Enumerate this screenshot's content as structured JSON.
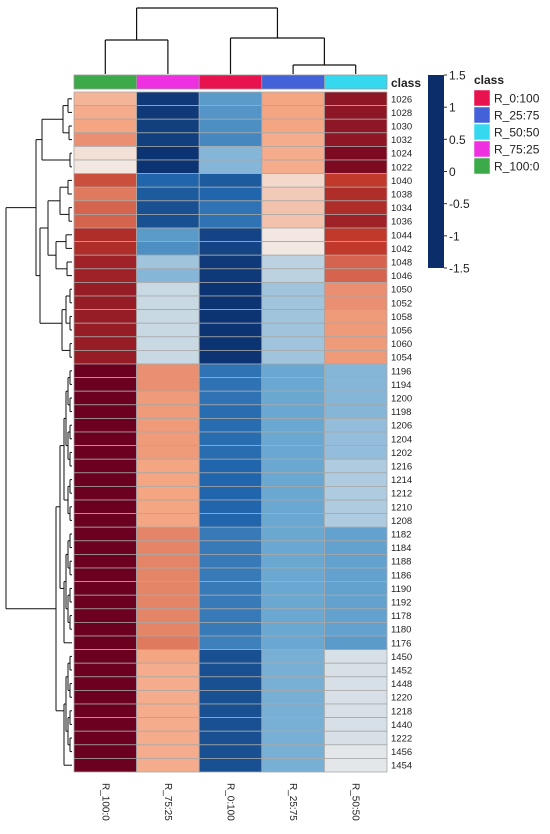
{
  "chart_data": {
    "type": "heatmap",
    "columns": [
      "R_100:0",
      "R_75:25",
      "R_0:100",
      "R_25:75",
      "R_50:50"
    ],
    "rows": [
      "1026",
      "1028",
      "1030",
      "1032",
      "1024",
      "1022",
      "1040",
      "1038",
      "1034",
      "1036",
      "1044",
      "1042",
      "1048",
      "1046",
      "1050",
      "1052",
      "1058",
      "1056",
      "1060",
      "1054",
      "1196",
      "1194",
      "1200",
      "1198",
      "1206",
      "1204",
      "1202",
      "1216",
      "1214",
      "1212",
      "1210",
      "1208",
      "1182",
      "1184",
      "1188",
      "1186",
      "1190",
      "1192",
      "1178",
      "1180",
      "1176",
      "1450",
      "1452",
      "1448",
      "1220",
      "1218",
      "1440",
      "1222",
      "1456",
      "1454"
    ],
    "values": [
      [
        0.4,
        -1.4,
        -0.6,
        0.5,
        1.3
      ],
      [
        0.45,
        -1.4,
        -0.65,
        0.5,
        1.3
      ],
      [
        0.5,
        -1.35,
        -0.7,
        0.5,
        1.3
      ],
      [
        0.6,
        -1.35,
        -0.75,
        0.45,
        1.3
      ],
      [
        0.1,
        -1.45,
        -0.4,
        0.45,
        1.4
      ],
      [
        0.05,
        -1.45,
        -0.4,
        0.45,
        1.4
      ],
      [
        0.9,
        -1.0,
        -1.1,
        0.15,
        1.0
      ],
      [
        0.7,
        -1.1,
        -1.0,
        0.25,
        1.1
      ],
      [
        0.8,
        -1.2,
        -0.9,
        0.3,
        1.1
      ],
      [
        0.8,
        -1.2,
        -0.9,
        0.3,
        1.2
      ],
      [
        1.1,
        -0.6,
        -1.3,
        0.05,
        1.0
      ],
      [
        1.1,
        -0.7,
        -1.3,
        0.05,
        1.0
      ],
      [
        1.2,
        -0.3,
        -1.4,
        -0.2,
        0.8
      ],
      [
        1.2,
        -0.4,
        -1.4,
        -0.2,
        0.8
      ],
      [
        1.25,
        -0.15,
        -1.45,
        -0.3,
        0.6
      ],
      [
        1.25,
        -0.15,
        -1.45,
        -0.3,
        0.6
      ],
      [
        1.25,
        -0.15,
        -1.45,
        -0.3,
        0.55
      ],
      [
        1.25,
        -0.15,
        -1.45,
        -0.3,
        0.55
      ],
      [
        1.25,
        -0.15,
        -1.45,
        -0.3,
        0.55
      ],
      [
        1.25,
        -0.15,
        -1.45,
        -0.3,
        0.55
      ],
      [
        1.5,
        0.6,
        -0.9,
        -0.5,
        -0.4
      ],
      [
        1.5,
        0.6,
        -0.9,
        -0.5,
        -0.4
      ],
      [
        1.5,
        0.55,
        -0.9,
        -0.5,
        -0.4
      ],
      [
        1.5,
        0.55,
        -0.95,
        -0.5,
        -0.4
      ],
      [
        1.5,
        0.55,
        -0.95,
        -0.5,
        -0.35
      ],
      [
        1.5,
        0.55,
        -0.95,
        -0.5,
        -0.35
      ],
      [
        1.5,
        0.55,
        -0.95,
        -0.5,
        -0.35
      ],
      [
        1.5,
        0.5,
        -1.0,
        -0.5,
        -0.25
      ],
      [
        1.5,
        0.5,
        -1.0,
        -0.5,
        -0.25
      ],
      [
        1.5,
        0.5,
        -1.0,
        -0.5,
        -0.25
      ],
      [
        1.5,
        0.5,
        -1.0,
        -0.5,
        -0.25
      ],
      [
        1.5,
        0.5,
        -1.0,
        -0.5,
        -0.25
      ],
      [
        1.5,
        0.65,
        -0.85,
        -0.5,
        -0.55
      ],
      [
        1.5,
        0.65,
        -0.85,
        -0.5,
        -0.55
      ],
      [
        1.5,
        0.65,
        -0.85,
        -0.5,
        -0.55
      ],
      [
        1.5,
        0.65,
        -0.85,
        -0.5,
        -0.55
      ],
      [
        1.5,
        0.65,
        -0.85,
        -0.5,
        -0.55
      ],
      [
        1.5,
        0.65,
        -0.85,
        -0.5,
        -0.55
      ],
      [
        1.5,
        0.65,
        -0.85,
        -0.5,
        -0.55
      ],
      [
        1.5,
        0.65,
        -0.85,
        -0.5,
        -0.55
      ],
      [
        1.5,
        0.7,
        -0.8,
        -0.5,
        -0.6
      ],
      [
        1.5,
        0.5,
        -1.2,
        -0.45,
        -0.1
      ],
      [
        1.5,
        0.45,
        -1.2,
        -0.45,
        -0.1
      ],
      [
        1.5,
        0.45,
        -1.2,
        -0.45,
        -0.1
      ],
      [
        1.5,
        0.45,
        -1.2,
        -0.45,
        -0.1
      ],
      [
        1.5,
        0.45,
        -1.2,
        -0.45,
        -0.1
      ],
      [
        1.5,
        0.45,
        -1.2,
        -0.45,
        -0.1
      ],
      [
        1.5,
        0.45,
        -1.2,
        -0.45,
        -0.1
      ],
      [
        1.5,
        0.45,
        -1.2,
        -0.45,
        -0.05
      ],
      [
        1.5,
        0.45,
        -1.2,
        -0.45,
        -0.05
      ]
    ],
    "scale": {
      "min": -1.5,
      "max": 1.5,
      "ticks": [
        "1.5",
        "1",
        "0.5",
        "0",
        "-0.5",
        "-1",
        "-1.5"
      ],
      "tick_values": [
        1.5,
        1,
        0.5,
        0,
        -0.5,
        -1,
        -1.5
      ],
      "stops": [
        {
          "value": -1.5,
          "color": "#0b2e6b"
        },
        {
          "value": -1.0,
          "color": "#2166ac"
        },
        {
          "value": -0.5,
          "color": "#6aa8d2"
        },
        {
          "value": 0.0,
          "color": "#f2eeeb"
        },
        {
          "value": 0.5,
          "color": "#f4a582"
        },
        {
          "value": 1.0,
          "color": "#c0392b"
        },
        {
          "value": 1.5,
          "color": "#6b0020"
        }
      ]
    },
    "class_bar": {
      "title": "class",
      "column_colors": [
        "#3daa4a",
        "#ee30e0",
        "#e8124e",
        "#4361d8",
        "#36d8f0"
      ]
    },
    "legend": {
      "title": "class",
      "items": [
        {
          "label": "R_0:100",
          "color": "#e8124e"
        },
        {
          "label": "R_25:75",
          "color": "#4361d8"
        },
        {
          "label": "R_50:50",
          "color": "#36d8f0"
        },
        {
          "label": "R_75:25",
          "color": "#ee30e0"
        },
        {
          "label": "R_100:0",
          "color": "#3daa4a"
        }
      ]
    },
    "legend_position": "right",
    "column_dendrogram": true,
    "row_dendrogram": true
  }
}
